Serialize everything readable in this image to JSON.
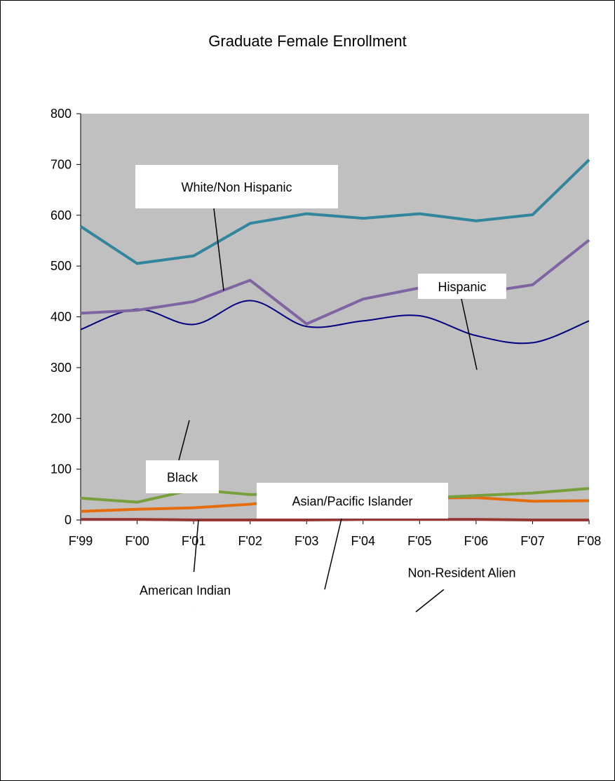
{
  "chart_data": {
    "type": "line",
    "title": "Graduate Female Enrollment",
    "xlabel": "",
    "ylabel": "",
    "categories": [
      "F'99",
      "F'00",
      "F'01",
      "F'02",
      "F'03",
      "F'04",
      "F'05",
      "F'06",
      "F'07",
      "F'08"
    ],
    "ylim": [
      0,
      800
    ],
    "yticks": [
      "0",
      "100",
      "200",
      "300",
      "400",
      "500",
      "600",
      "700",
      "800"
    ],
    "grid": false,
    "plot_background": "#C0C0C0",
    "series": [
      {
        "name": "White/Non Hispanic",
        "color": "#31859C",
        "smooth": false,
        "values": [
          578,
          505,
          520,
          584,
          603,
          594,
          603,
          589,
          601,
          709
        ]
      },
      {
        "name": "Hispanic",
        "color": "#8064A2",
        "smooth": false,
        "values": [
          407,
          413,
          430,
          472,
          386,
          435,
          457,
          446,
          463,
          551
        ]
      },
      {
        "name": "Black",
        "color": "#000080",
        "smooth": true,
        "values": [
          375,
          415,
          385,
          432,
          381,
          392,
          402,
          363,
          349,
          392
        ]
      },
      {
        "name": "Asian/Pacific Islander",
        "color": "#77A03C",
        "smooth": false,
        "values": [
          43,
          35,
          60,
          50,
          53,
          44,
          43,
          48,
          53,
          62
        ]
      },
      {
        "name": "Non-Resident Alien",
        "color": "#E46C0A",
        "smooth": false,
        "values": [
          17,
          21,
          24,
          31,
          41,
          29,
          43,
          44,
          37,
          38
        ]
      },
      {
        "name": "American Indian",
        "color": "#953735",
        "smooth": false,
        "values": [
          1,
          1,
          0,
          0,
          0,
          1,
          1,
          1,
          0,
          0
        ]
      }
    ],
    "annotations": [
      {
        "text": "White/Non Hispanic",
        "series": "White/Non Hispanic"
      },
      {
        "text": "Hispanic",
        "series": "Hispanic"
      },
      {
        "text": "Black",
        "series": "Black"
      },
      {
        "text": "Asian/Pacific Islander",
        "series": "Asian/Pacific Islander"
      },
      {
        "text": "Non-Resident Alien",
        "series": "Non-Resident Alien"
      },
      {
        "text": "American Indian",
        "series": "American Indian"
      }
    ]
  }
}
